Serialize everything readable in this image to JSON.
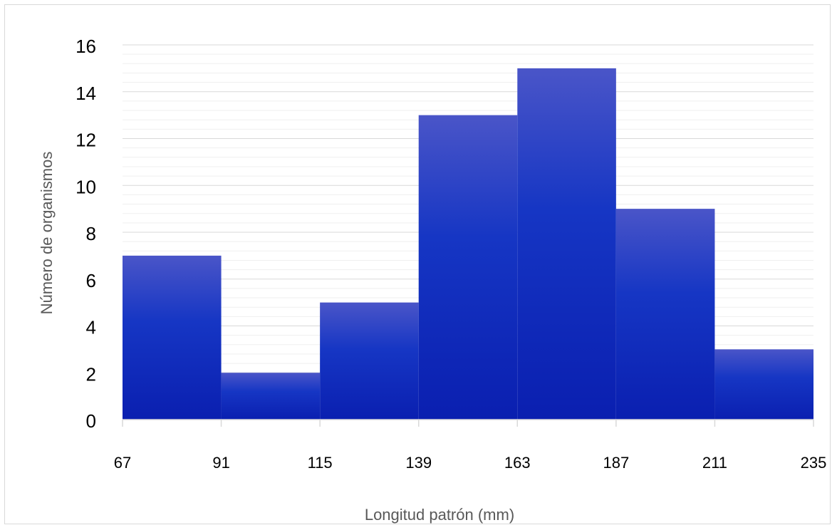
{
  "chart_data": {
    "type": "bar",
    "title": "",
    "xlabel": "Longitud patrón (mm)",
    "ylabel": "Número de organismos",
    "bin_edges": [
      "67",
      "91",
      "115",
      "139",
      "163",
      "187",
      "211",
      "235"
    ],
    "values": [
      7,
      2,
      5,
      13,
      15,
      9,
      3
    ],
    "y_ticks": [
      "0",
      "2",
      "4",
      "6",
      "8",
      "10",
      "12",
      "14",
      "16"
    ],
    "ylim": [
      0,
      16
    ],
    "xlim": [
      67,
      235
    ],
    "grid": {
      "major": true,
      "minor": true
    },
    "legend": "none",
    "colors": {
      "bar_top": "#4a55c8",
      "bar_mid": "#1636c4",
      "bar_bottom": "#0a1fb0",
      "grid_major": "#d9d9d9",
      "grid_minor": "#efefef",
      "text": "#000000",
      "axis_title": "#595959"
    }
  }
}
